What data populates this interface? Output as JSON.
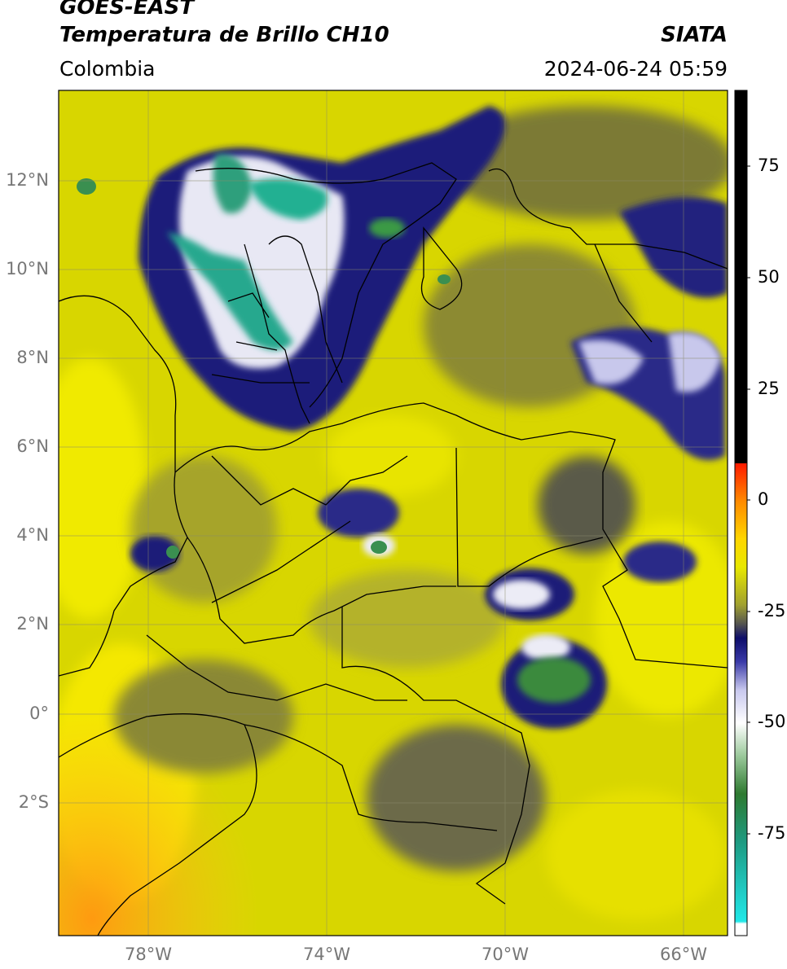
{
  "header": {
    "satellite": "GOES-EAST",
    "product": "Temperatura de Brillo CH10",
    "region": "Colombia",
    "source": "SIATA",
    "datetime": "2024-06-24 05:59"
  },
  "map": {
    "lat_ticks": [
      {
        "label": "12°N"
      },
      {
        "label": "10°N"
      },
      {
        "label": "8°N"
      },
      {
        "label": "6°N"
      },
      {
        "label": "4°N"
      },
      {
        "label": "2°N"
      },
      {
        "label": "0°"
      },
      {
        "label": "2°S"
      }
    ],
    "lon_ticks": [
      {
        "label": "78°W"
      },
      {
        "label": "74°W"
      },
      {
        "label": "70°W"
      },
      {
        "label": "66°W"
      }
    ]
  },
  "colorbar": {
    "ticks": [
      "75",
      "50",
      "25",
      "0",
      "-25",
      "-50",
      "-75"
    ],
    "colors": {
      "black": "#000000",
      "red": "#ff2000",
      "orange": "#ff9a00",
      "yellow": "#e8e800",
      "olive": "#aaaa22",
      "gray": "#5a5a4a",
      "navy": "#1a1a80",
      "white": "#ffffff",
      "green": "#2e8b3a",
      "teal": "#20b5a0",
      "cyan": "#20e0e0"
    }
  }
}
